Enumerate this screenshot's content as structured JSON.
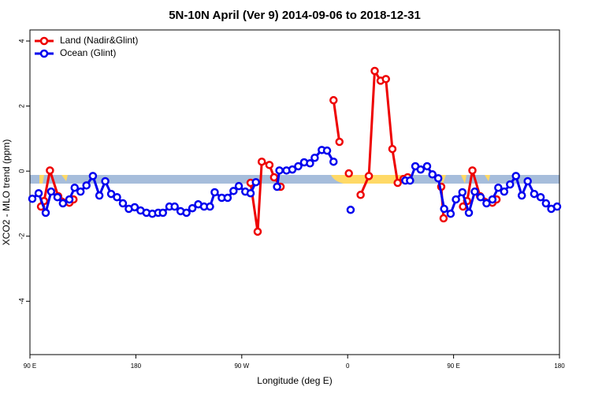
{
  "chart_data": {
    "type": "line",
    "title": "5N-10N April (Ver 9)   2014-09-06 to 2018-12-31",
    "xlabel": "Longitude (deg E)",
    "ylabel": "XCO2 - MLO trend (ppm)",
    "xlim": [
      90,
      540
    ],
    "ylim": [
      -5.64,
      4.34
    ],
    "xticks": [
      {
        "value": 90,
        "label": "90 E"
      },
      {
        "value": 180,
        "label": "180"
      },
      {
        "value": 270,
        "label": "90 W"
      },
      {
        "value": 360,
        "label": "0"
      },
      {
        "value": 450,
        "label": "90 E"
      },
      {
        "value": 540,
        "label": "180"
      }
    ],
    "yticks": [
      -4,
      -2,
      0,
      2,
      4
    ],
    "legend": "top-left",
    "series": [
      {
        "name": "Land (Nadir&Glint)",
        "color": "#ee0000",
        "x": [
          99.4,
          102,
          107,
          114,
          123.5,
          127,
          null,
          277.5,
          283.5,
          287,
          293.5,
          297.5,
          303,
          null,
          348,
          353,
          null,
          361,
          null,
          371,
          378,
          383,
          388,
          392.5,
          398,
          402.5,
          407.5,
          411,
          null,
          439.5,
          441.5,
          null,
          458,
          461.5,
          466,
          472.5,
          483,
          486.5
        ],
        "values": [
          -1.09,
          -0.92,
          0.02,
          -0.77,
          -0.97,
          -0.87,
          null,
          -0.36,
          -1.86,
          0.29,
          0.19,
          -0.19,
          -0.48,
          null,
          2.18,
          0.9,
          null,
          -0.07,
          null,
          -0.73,
          -0.15,
          3.08,
          2.78,
          2.83,
          0.68,
          -0.36,
          -0.24,
          -0.19,
          null,
          -0.48,
          -1.45,
          null,
          -1.09,
          -0.92,
          0.02,
          -0.77,
          -0.97,
          -0.87
        ]
      },
      {
        "name": "Ocean (Glint)",
        "color": "#0000ee",
        "x": [
          92,
          97.4,
          103.4,
          108,
          113.4,
          118,
          123.5,
          128,
          133,
          138,
          143.5,
          149,
          154,
          159,
          164,
          169,
          174,
          179,
          184,
          189,
          194,
          199,
          203,
          208.5,
          213,
          218,
          223,
          228,
          233,
          238,
          243,
          247,
          253,
          258,
          263,
          267.5,
          273,
          277.5,
          282,
          null,
          300,
          302,
          308,
          313,
          318,
          323,
          328,
          332,
          338,
          342.5,
          348,
          null,
          362.5,
          null,
          409,
          413,
          417.5,
          422,
          427.5,
          432,
          437,
          442,
          447.5,
          452,
          457.5,
          463,
          468,
          473,
          478,
          483,
          488,
          493,
          498,
          503,
          508,
          513,
          518.5,
          524,
          528.5,
          533,
          538
        ],
        "values": [
          -0.85,
          -0.68,
          -1.28,
          -0.63,
          -0.8,
          -0.99,
          -0.87,
          -0.51,
          -0.63,
          -0.44,
          -0.15,
          -0.75,
          -0.31,
          -0.7,
          -0.8,
          -0.99,
          -1.16,
          -1.11,
          -1.21,
          -1.28,
          -1.31,
          -1.28,
          -1.28,
          -1.09,
          -1.09,
          -1.23,
          -1.28,
          -1.14,
          -1.02,
          -1.09,
          -1.09,
          -0.65,
          -0.82,
          -0.82,
          -0.61,
          -0.46,
          -0.63,
          -0.68,
          -0.34,
          null,
          -0.48,
          0.02,
          0.02,
          0.05,
          0.15,
          0.27,
          0.24,
          0.41,
          0.65,
          0.63,
          0.29,
          null,
          -1.19,
          null,
          -0.29,
          -0.29,
          0.15,
          0.05,
          0.15,
          -0.1,
          -0.22,
          -1.16,
          -1.31,
          -0.87,
          -0.65,
          -1.28,
          -0.63,
          -0.8,
          -0.99,
          -0.87,
          -0.51,
          -0.63,
          -0.41,
          -0.15,
          -0.75,
          -0.31,
          -0.7,
          -0.8,
          -0.99,
          -1.16,
          -1.09
        ]
      }
    ]
  }
}
